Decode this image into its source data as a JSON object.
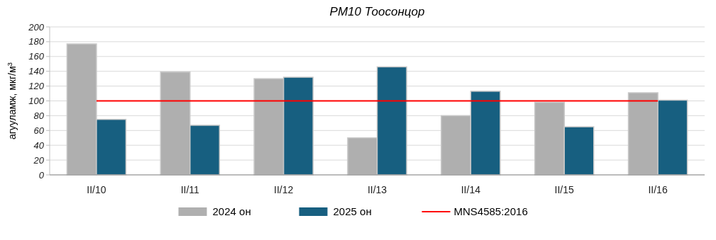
{
  "chart_data": {
    "type": "bar",
    "title": "PM10 Тоосонцор",
    "ylabel": "агууламж, мкг/м$^{3}$",
    "categories": [
      "II/10",
      "II/11",
      "II/12",
      "II/13",
      "II/14",
      "II/15",
      "II/16"
    ],
    "series": [
      {
        "name": "2024 он",
        "color": "#afafaf",
        "values": [
          177,
          139,
          130,
          50,
          80,
          98,
          111
        ]
      },
      {
        "name": "2025 он",
        "color": "#175f80",
        "values": [
          75,
          67,
          132,
          146,
          113,
          65,
          101
        ]
      },
      {
        "name": "MNS4585:2016",
        "type": "line",
        "color": "#ff0000",
        "values": [
          100,
          100,
          100,
          100,
          100,
          100,
          100
        ]
      }
    ],
    "ylim": [
      0,
      200
    ],
    "yticks": [
      0,
      20,
      40,
      60,
      80,
      100,
      120,
      140,
      160,
      180,
      200
    ],
    "grid": "y",
    "legend": "bottom",
    "marker": "none",
    "line_style": "solid"
  }
}
